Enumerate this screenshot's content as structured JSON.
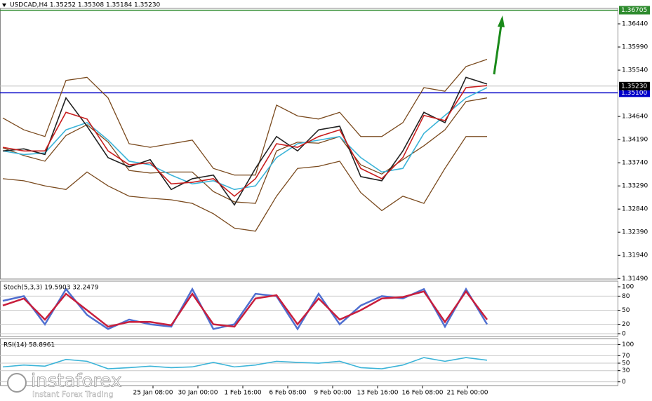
{
  "chart_data": [
    {
      "type": "line",
      "title": "USDCAD,H4 1.35252 1.35308 1.35184 1.35230",
      "ylim": [
        1.3148,
        1.3674
      ],
      "yticks": [
        {
          "value": 1.3644,
          "label": "1.36440"
        },
        {
          "value": 1.3599,
          "label": "1.35990"
        },
        {
          "value": 1.3554,
          "label": "1.35540"
        },
        {
          "value": 1.3464,
          "label": "1.34640"
        },
        {
          "value": 1.3419,
          "label": "1.34190"
        },
        {
          "value": 1.3374,
          "label": "1.33740"
        },
        {
          "value": 1.3329,
          "label": "1.33290"
        },
        {
          "value": 1.3284,
          "label": "1.32840"
        },
        {
          "value": 1.3239,
          "label": "1.32390"
        },
        {
          "value": 1.3194,
          "label": "1.31940"
        },
        {
          "value": 1.3149,
          "label": "1.31490"
        }
      ],
      "levels": [
        {
          "value": 1.36705,
          "label": "1.36705",
          "color": "#2e8b2e"
        },
        {
          "value": 1.351,
          "label": "1.35100",
          "color": "#0000c8"
        },
        {
          "value": 1.3523,
          "label": "1.35230",
          "color": "#000000"
        }
      ],
      "time_labels": [
        "25 Jan 08:00",
        "30 Jan 00:00",
        "1 Feb 16:00",
        "6 Feb 08:00",
        "9 Feb 00:00",
        "13 Feb 16:00",
        "16 Feb 08:00",
        "21 Feb 00:00"
      ],
      "series": [
        {
          "color": "#7a4a1e",
          "values": [
            1.3461,
            1.3438,
            1.3425,
            1.3534,
            1.354,
            1.35,
            1.3411,
            1.3404,
            1.3411,
            1.3418,
            1.3363,
            1.335,
            1.335,
            1.3486,
            1.3465,
            1.3459,
            1.3472,
            1.3425,
            1.3425,
            1.3452,
            1.352,
            1.3513,
            1.3561,
            1.3575
          ]
        },
        {
          "color": "#7a4a1e",
          "values": [
            1.3403,
            1.3388,
            1.3377,
            1.3427,
            1.3448,
            1.3414,
            1.3359,
            1.3354,
            1.3356,
            1.3356,
            1.3318,
            1.3298,
            1.3295,
            1.3397,
            1.3414,
            1.3412,
            1.3425,
            1.337,
            1.3352,
            1.338,
            1.3407,
            1.3438,
            1.3493,
            1.35
          ]
        },
        {
          "color": "#7a4a1e",
          "values": [
            1.3343,
            1.3339,
            1.3329,
            1.3322,
            1.3356,
            1.3329,
            1.3309,
            1.3305,
            1.3302,
            1.3295,
            1.3275,
            1.3247,
            1.3241,
            1.3309,
            1.3363,
            1.3367,
            1.3377,
            1.3316,
            1.3281,
            1.3309,
            1.3295,
            1.3363,
            1.3425,
            1.3425
          ]
        },
        {
          "color": "#3cb4d8",
          "values": [
            1.3397,
            1.339,
            1.3393,
            1.3438,
            1.3452,
            1.3418,
            1.3377,
            1.337,
            1.335,
            1.3333,
            1.3339,
            1.3322,
            1.3329,
            1.3384,
            1.3411,
            1.3418,
            1.3425,
            1.3384,
            1.3356,
            1.3363,
            1.3431,
            1.3466,
            1.35,
            1.352
          ]
        },
        {
          "color": "#222222",
          "values": [
            1.3397,
            1.3401,
            1.339,
            1.35,
            1.3445,
            1.3384,
            1.3366,
            1.338,
            1.3322,
            1.3343,
            1.335,
            1.3292,
            1.3363,
            1.3425,
            1.3397,
            1.3438,
            1.3445,
            1.3347,
            1.3339,
            1.3397,
            1.3472,
            1.3452,
            1.354,
            1.3527
          ]
        },
        {
          "color": "#c81e1e",
          "values": [
            1.3404,
            1.3397,
            1.3397,
            1.3472,
            1.3459,
            1.3397,
            1.337,
            1.3374,
            1.3333,
            1.3336,
            1.3343,
            1.3309,
            1.3343,
            1.3411,
            1.3404,
            1.3425,
            1.3438,
            1.3363,
            1.3343,
            1.3384,
            1.3466,
            1.3456,
            1.352,
            1.3524
          ]
        }
      ]
    },
    {
      "type": "line",
      "title": "Stoch(5,3,3) 19.5903 32.2479",
      "ylim": [
        -6,
        109
      ],
      "yticks": [
        100,
        80,
        50,
        20,
        0
      ],
      "series": [
        {
          "color": "#4f6fd0",
          "values": [
            70,
            80,
            20,
            95,
            40,
            10,
            30,
            20,
            15,
            95,
            10,
            20,
            85,
            80,
            10,
            85,
            20,
            60,
            80,
            75,
            95,
            15,
            95,
            20
          ]
        },
        {
          "color": "#c81e3c",
          "values": [
            60,
            75,
            30,
            85,
            50,
            15,
            25,
            25,
            18,
            85,
            20,
            15,
            75,
            82,
            20,
            75,
            30,
            50,
            75,
            78,
            90,
            25,
            90,
            30
          ]
        }
      ]
    },
    {
      "type": "line",
      "title": "RSI(14) 58.8961",
      "ylim": [
        -10,
        112
      ],
      "yticks": [
        100,
        70,
        50,
        30,
        0
      ],
      "series": [
        {
          "color": "#3cb4d8",
          "values": [
            40,
            45,
            42,
            60,
            55,
            35,
            38,
            42,
            38,
            40,
            52,
            40,
            45,
            55,
            52,
            50,
            55,
            38,
            35,
            45,
            65,
            55,
            65,
            58
          ]
        }
      ]
    }
  ],
  "logo": {
    "name": "instaforex",
    "tagline": "Instant Forex Trading"
  }
}
